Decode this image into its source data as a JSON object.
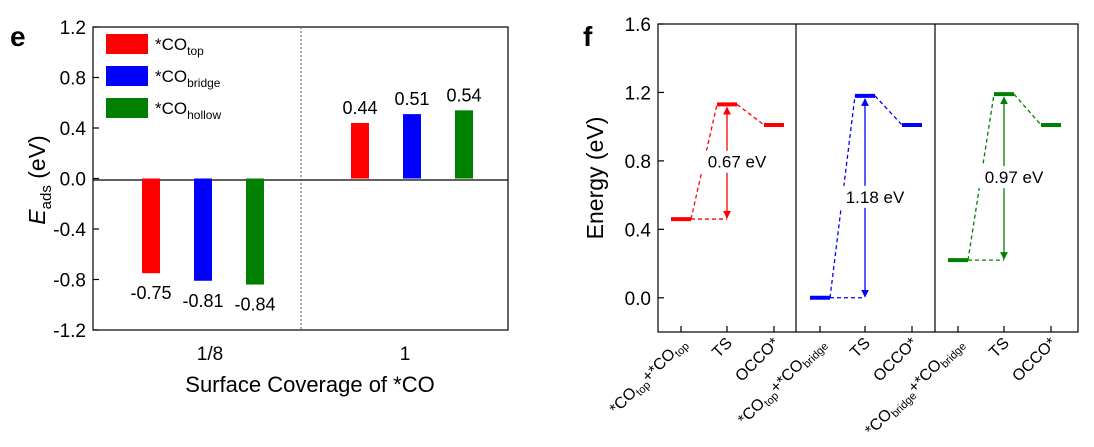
{
  "colors": {
    "top": "#ff0000",
    "bridge": "#0000ff",
    "hollow": "#008000",
    "axis": "#000000"
  },
  "chart_data": [
    {
      "panel_label": "e",
      "type": "bar",
      "xlabel": "Surface Coverage of *CO",
      "ylabel": {
        "main": "E",
        "sub": "ads",
        "unit": " (eV)"
      },
      "ylim": [
        -1.2,
        1.2
      ],
      "yticks": [
        "-1.2",
        "-0.8",
        "-0.4",
        "0.0",
        "0.4",
        "0.8",
        "1.2"
      ],
      "ytick_values": [
        -1.2,
        -0.8,
        -0.4,
        0.0,
        0.4,
        0.8,
        1.2
      ],
      "categories": [
        "1/8",
        "1"
      ],
      "legend": [
        {
          "base": "*CO",
          "sub": "top",
          "color": "#ff0000"
        },
        {
          "base": "*CO",
          "sub": "bridge",
          "color": "#0000ff"
        },
        {
          "base": "*CO",
          "sub": "hollow",
          "color": "#008000"
        }
      ],
      "series": [
        {
          "key": "top",
          "color": "#ff0000",
          "values": [
            -0.75,
            0.44
          ],
          "labels": [
            "-0.75",
            "0.44"
          ]
        },
        {
          "key": "bridge",
          "color": "#0000ff",
          "values": [
            -0.81,
            0.51
          ],
          "labels": [
            "-0.81",
            "0.51"
          ]
        },
        {
          "key": "hollow",
          "color": "#008000",
          "values": [
            -0.84,
            0.54
          ],
          "labels": [
            "-0.84",
            "0.54"
          ]
        }
      ],
      "separator": "dotted"
    },
    {
      "panel_label": "f",
      "type": "line",
      "ylabel": "Energy (eV)",
      "ylim": [
        -0.2,
        1.6
      ],
      "yticks": [
        "0.0",
        "0.4",
        "0.8",
        "1.2",
        "1.6"
      ],
      "ytick_values": [
        0.0,
        0.4,
        0.8,
        1.2,
        1.6
      ],
      "panels": [
        {
          "color": "#ff0000",
          "levels": [
            0.46,
            1.13,
            1.01
          ],
          "barrier_label": "0.67 eV",
          "xticks": [
            {
              "parts": [
                [
                  "*CO",
                  ""
                ],
                [
                  "top",
                  "sub"
                ],
                [
                  "+*CO",
                  ""
                ],
                [
                  "top",
                  "sub"
                ]
              ]
            },
            {
              "parts": [
                [
                  "TS",
                  ""
                ]
              ]
            },
            {
              "parts": [
                [
                  "OCCO*",
                  ""
                ]
              ]
            }
          ]
        },
        {
          "color": "#0000ff",
          "levels": [
            0.0,
            1.18,
            1.01
          ],
          "barrier_label": "1.18 eV",
          "xticks": [
            {
              "parts": [
                [
                  "*CO",
                  ""
                ],
                [
                  "top",
                  "sub"
                ],
                [
                  "+*CO",
                  ""
                ],
                [
                  "bridge",
                  "sub"
                ]
              ]
            },
            {
              "parts": [
                [
                  "TS",
                  ""
                ]
              ]
            },
            {
              "parts": [
                [
                  "OCCO*",
                  ""
                ]
              ]
            }
          ]
        },
        {
          "color": "#008000",
          "levels": [
            0.22,
            1.19,
            1.01
          ],
          "barrier_label": "0.97 eV",
          "xticks": [
            {
              "parts": [
                [
                  "*CO",
                  ""
                ],
                [
                  "bridge",
                  "sub"
                ],
                [
                  "+*CO",
                  ""
                ],
                [
                  "bridge",
                  "sub"
                ]
              ]
            },
            {
              "parts": [
                [
                  "TS",
                  ""
                ]
              ]
            },
            {
              "parts": [
                [
                  "OCCO*",
                  ""
                ]
              ]
            }
          ]
        }
      ]
    }
  ]
}
